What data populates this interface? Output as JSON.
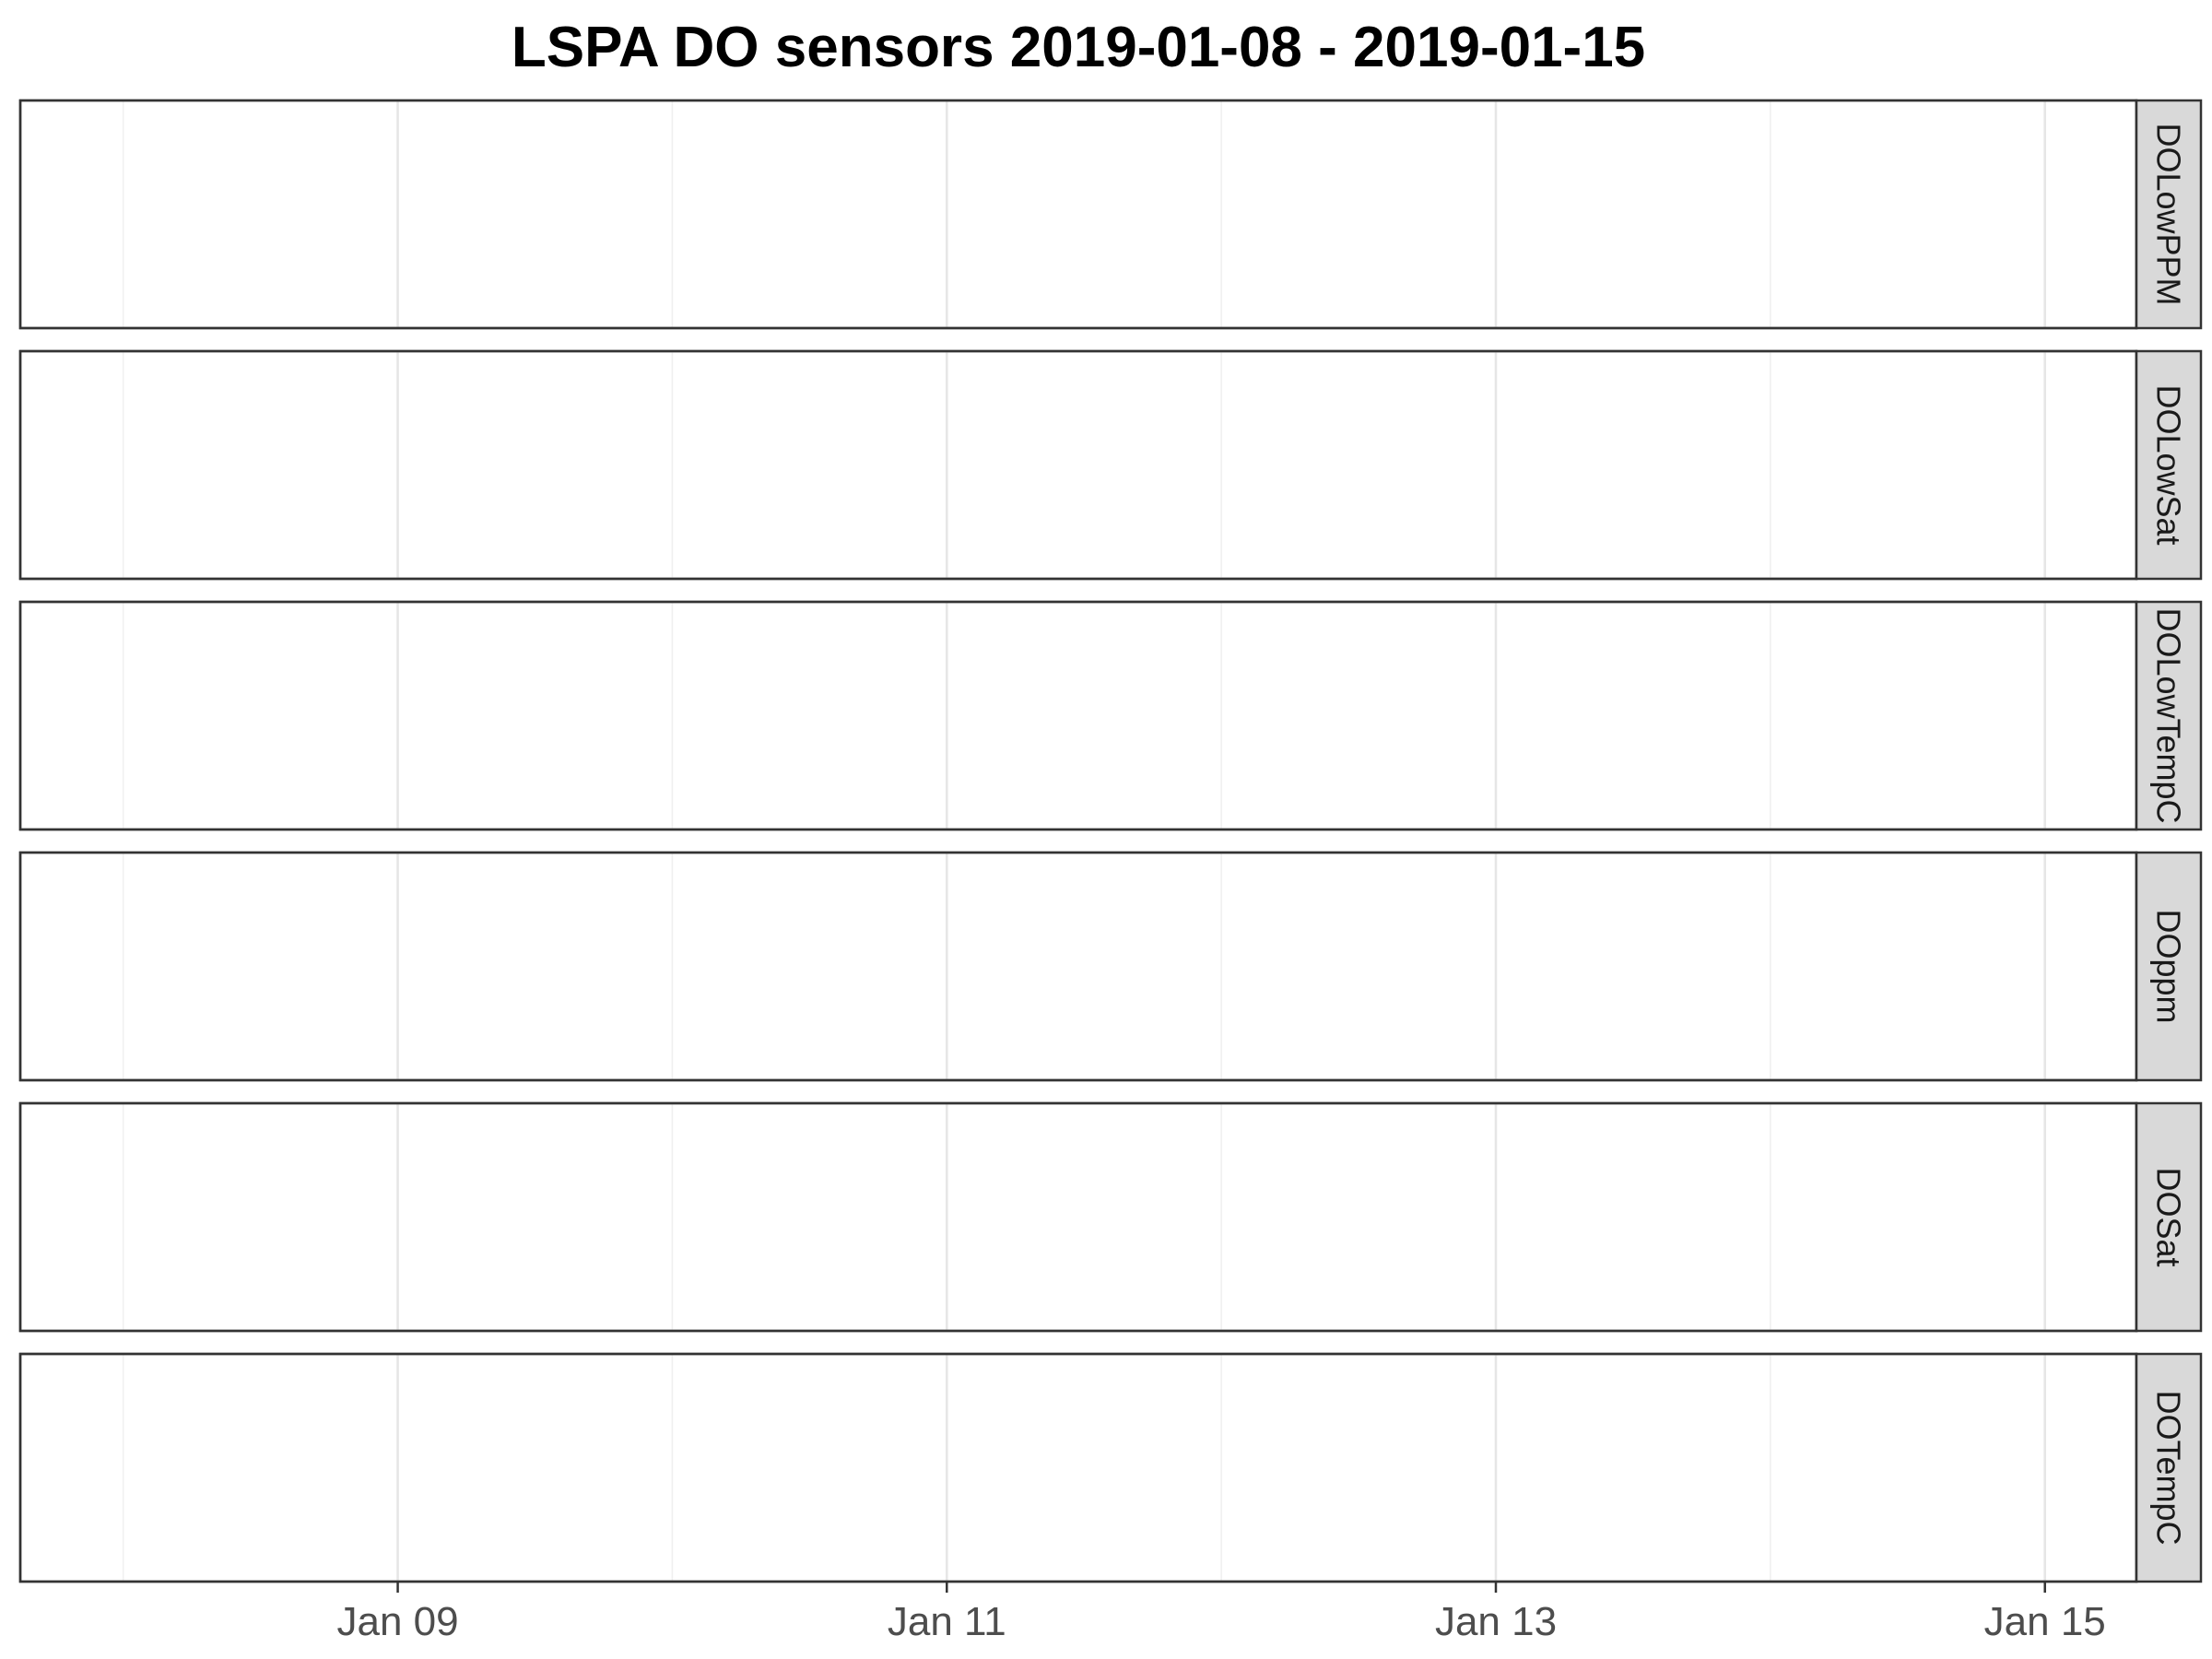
{
  "chart_data": {
    "type": "line",
    "title": "LSPA DO sensors 2019-01-08 - 2019-01-15",
    "xlabel": "",
    "ylabel": "",
    "x_axis": {
      "type": "date",
      "range": [
        "2019-01-07T15:00",
        "2019-01-15T08:00"
      ],
      "ticks": [
        {
          "value": "2019-01-09",
          "label": "Jan 09"
        },
        {
          "value": "2019-01-11",
          "label": "Jan 11"
        },
        {
          "value": "2019-01-13",
          "label": "Jan 13"
        },
        {
          "value": "2019-01-15",
          "label": "Jan 15"
        }
      ],
      "minor_ticks": [
        "2019-01-08",
        "2019-01-10",
        "2019-01-12",
        "2019-01-14"
      ]
    },
    "grid": true,
    "facet_layout": "rows",
    "strip_position": "right",
    "panels": [
      {
        "label": "DOLowPPM",
        "series": []
      },
      {
        "label": "DOLowSat",
        "series": []
      },
      {
        "label": "DOLowTempC",
        "series": []
      },
      {
        "label": "DOppm",
        "series": []
      },
      {
        "label": "DOSat",
        "series": []
      },
      {
        "label": "DOTempC",
        "series": []
      }
    ]
  },
  "colors": {
    "panel_border": "#333333",
    "strip_fill": "#d9d9d9",
    "grid_major": "#e6e6e6",
    "grid_minor": "#f0f0f0",
    "tick_label": "#4d4d4d"
  }
}
